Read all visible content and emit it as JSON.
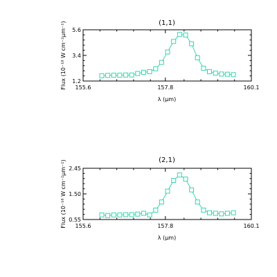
{
  "chart_data": [
    {
      "type": "line",
      "title": "(1,1)",
      "xlabel": "λ (μm)",
      "ylabel": "Flux (10⁻¹⁸ W cm⁻²μm⁻¹)",
      "xlim": [
        155.6,
        160.1
      ],
      "ylim": [
        1.2,
        5.6
      ],
      "xticks": [
        "155.6",
        "157.8",
        "160.1"
      ],
      "yticks": [
        "1.2",
        "3.4",
        "5.6"
      ],
      "marker": "square",
      "color": "#33d6b0",
      "x": [
        156.1,
        156.26,
        156.42,
        156.58,
        156.74,
        156.9,
        157.06,
        157.22,
        157.38,
        157.54,
        157.7,
        157.86,
        158.02,
        158.18,
        158.34,
        158.5,
        158.66,
        158.82,
        158.98,
        159.14,
        159.3,
        159.46,
        159.62
      ],
      "y": [
        1.65,
        1.68,
        1.7,
        1.7,
        1.72,
        1.72,
        1.85,
        1.95,
        2.0,
        2.25,
        2.8,
        3.7,
        4.6,
        5.2,
        5.15,
        4.4,
        3.2,
        2.3,
        2.0,
        1.88,
        1.8,
        1.78,
        1.75
      ]
    },
    {
      "type": "line",
      "title": "(2,1)",
      "xlabel": "λ (μm)",
      "ylabel": "Flux (10⁻¹⁸ W cm⁻²μm⁻¹)",
      "xlim": [
        155.6,
        160.1
      ],
      "ylim": [
        0.55,
        2.45
      ],
      "xticks": [
        "155.6",
        "157.8",
        "160.1"
      ],
      "yticks": [
        "0.55",
        "1.50",
        "2.45"
      ],
      "marker": "square",
      "color": "#33d6b0",
      "x": [
        156.1,
        156.26,
        156.42,
        156.58,
        156.74,
        156.9,
        157.06,
        157.22,
        157.38,
        157.54,
        157.7,
        157.86,
        158.02,
        158.18,
        158.34,
        158.5,
        158.66,
        158.82,
        158.98,
        159.14,
        159.3,
        159.46,
        159.62
      ],
      "y": [
        0.72,
        0.7,
        0.72,
        0.72,
        0.73,
        0.73,
        0.75,
        0.78,
        0.72,
        0.9,
        1.2,
        1.6,
        2.0,
        2.2,
        2.05,
        1.65,
        1.2,
        0.9,
        0.8,
        0.78,
        0.76,
        0.78,
        0.8
      ]
    }
  ]
}
